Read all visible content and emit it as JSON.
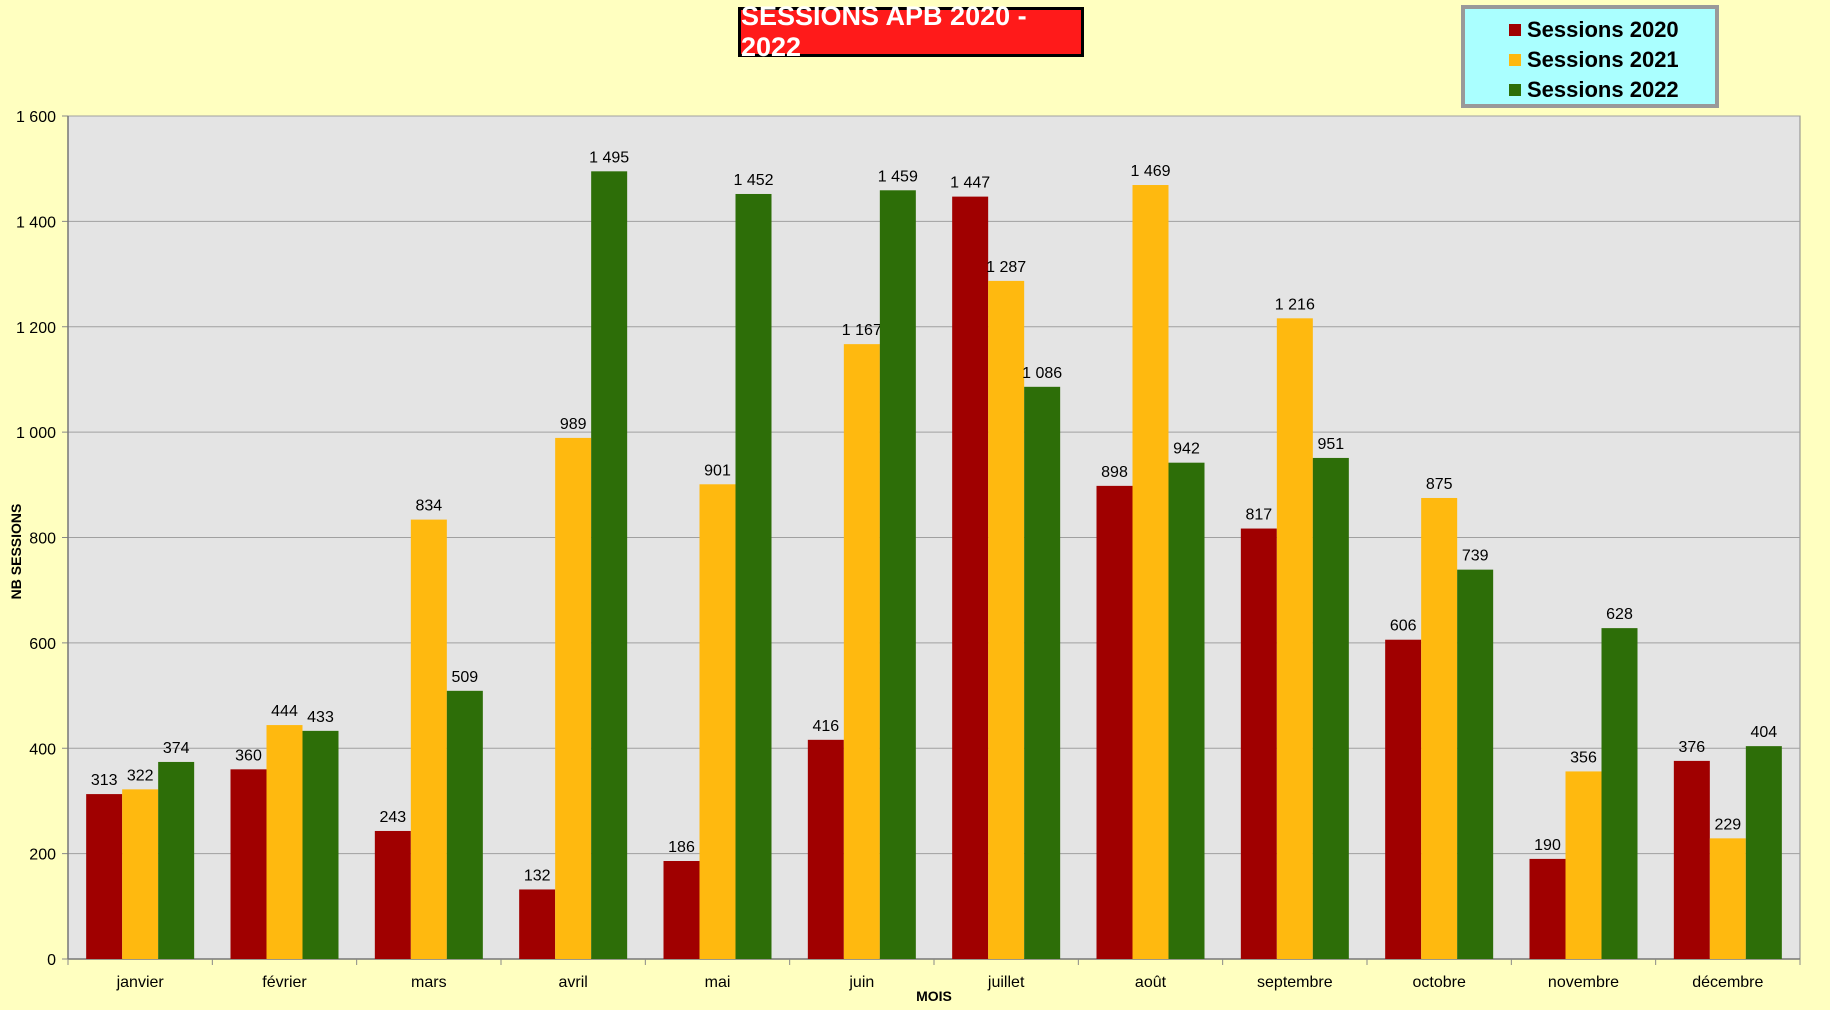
{
  "chart_data": {
    "type": "bar",
    "title": "SESSIONS APB 2020 - 2022",
    "xlabel": "MOIS",
    "ylabel": "NB SESSIONS",
    "ylim": [
      0,
      1600
    ],
    "yticks": [
      0,
      200,
      400,
      600,
      800,
      1000,
      1200,
      1400,
      1600
    ],
    "ytick_labels": [
      "0",
      "200",
      "400",
      "600",
      "800",
      "1 000",
      "1 200",
      "1 400",
      "1 600"
    ],
    "grid": true,
    "legend": "top-right",
    "categories": [
      "janvier",
      "février",
      "mars",
      "avril",
      "mai",
      "juin",
      "juillet",
      "août",
      "septembre",
      "octobre",
      "novembre",
      "décembre"
    ],
    "series": [
      {
        "name": "Sessions 2020",
        "color": "#a00000",
        "values": [
          313,
          360,
          243,
          132,
          186,
          416,
          1447,
          898,
          817,
          606,
          190,
          376
        ],
        "labels": [
          "313",
          "360",
          "243",
          "132",
          "186",
          "416",
          "1 447",
          "898",
          "817",
          "606",
          "190",
          "376"
        ]
      },
      {
        "name": "Sessions 2021",
        "color": "#ffb90f",
        "values": [
          322,
          444,
          834,
          989,
          901,
          1167,
          1287,
          1469,
          1216,
          875,
          356,
          229
        ],
        "labels": [
          "322",
          "444",
          "834",
          "989",
          "901",
          "1 167",
          "1 287",
          "1 469",
          "1 216",
          "875",
          "356",
          "229"
        ]
      },
      {
        "name": "Sessions 2022",
        "color": "#2d6e08",
        "values": [
          374,
          433,
          509,
          1495,
          1452,
          1459,
          1086,
          942,
          951,
          739,
          628,
          404
        ],
        "labels": [
          "374",
          "433",
          "509",
          "1 495",
          "1 452",
          "1 459",
          "1 086",
          "942",
          "951",
          "739",
          "628",
          "404"
        ]
      }
    ],
    "plot_bg": "#e4e4e4",
    "page_bg": "#ffffc0"
  }
}
